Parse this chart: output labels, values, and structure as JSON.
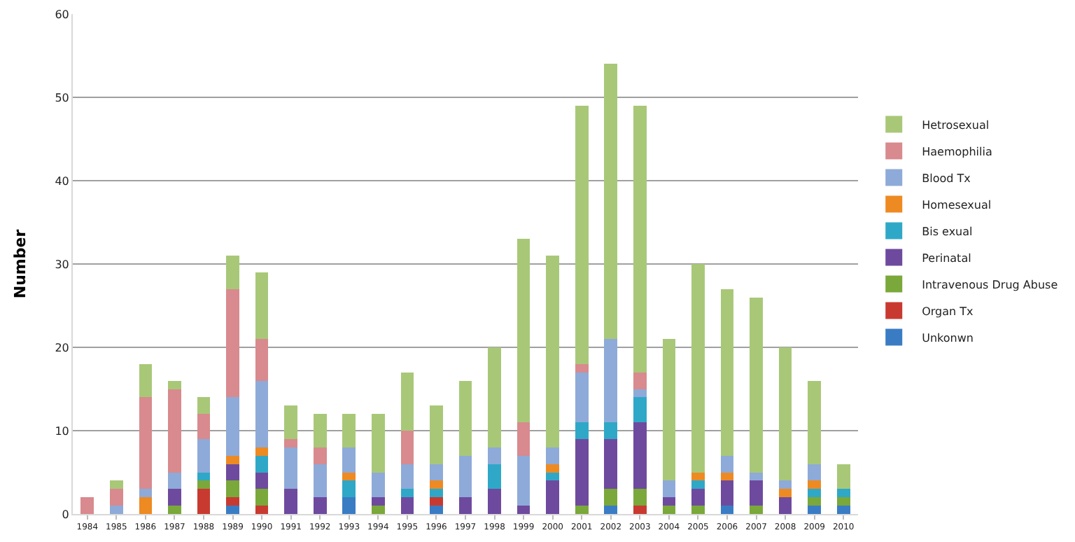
{
  "chart_data": {
    "type": "bar",
    "stacked": true,
    "ylabel": "Number",
    "categories": [
      "1984",
      "1985",
      "1986",
      "1987",
      "1988",
      "1989",
      "1990",
      "1991",
      "1992",
      "1993",
      "1994",
      "1995",
      "1996",
      "1997",
      "1998",
      "1999",
      "2000",
      "2001",
      "2002",
      "2003",
      "2004",
      "2005",
      "2006",
      "2007",
      "2008",
      "2009",
      "2010"
    ],
    "series": [
      {
        "name": "Unkonwn",
        "color": "#3a7cc4",
        "values": [
          0,
          0,
          0,
          0,
          0,
          1,
          0,
          0,
          0,
          2,
          0,
          0,
          1,
          0,
          0,
          0,
          0,
          0,
          1,
          0,
          0,
          0,
          1,
          0,
          0,
          1,
          1
        ]
      },
      {
        "name": "Organ Tx",
        "color": "#c83a30",
        "values": [
          0,
          0,
          0,
          0,
          3,
          1,
          1,
          0,
          0,
          0,
          0,
          0,
          1,
          0,
          0,
          0,
          0,
          0,
          0,
          1,
          0,
          0,
          0,
          0,
          0,
          0,
          0
        ]
      },
      {
        "name": "Intravenous Drug Abuse",
        "color": "#7aa83a",
        "values": [
          0,
          0,
          0,
          1,
          1,
          2,
          2,
          0,
          0,
          0,
          1,
          0,
          0,
          0,
          0,
          0,
          0,
          1,
          2,
          2,
          1,
          1,
          0,
          1,
          0,
          1,
          1
        ]
      },
      {
        "name": "Perinatal",
        "color": "#6e4a9e",
        "values": [
          0,
          0,
          0,
          2,
          0,
          2,
          2,
          3,
          2,
          0,
          1,
          2,
          0,
          2,
          3,
          1,
          4,
          8,
          6,
          8,
          1,
          2,
          3,
          3,
          2,
          0,
          0
        ]
      },
      {
        "name": "Bis exual",
        "color": "#2fa8c8",
        "values": [
          0,
          0,
          0,
          0,
          1,
          0,
          2,
          0,
          0,
          2,
          0,
          1,
          1,
          0,
          3,
          0,
          1,
          2,
          2,
          3,
          0,
          1,
          0,
          0,
          0,
          1,
          1
        ]
      },
      {
        "name": "Homesexual",
        "color": "#ee8a22",
        "values": [
          0,
          0,
          2,
          0,
          0,
          1,
          1,
          0,
          0,
          1,
          0,
          0,
          1,
          0,
          0,
          0,
          1,
          0,
          0,
          0,
          0,
          1,
          1,
          0,
          1,
          1,
          0
        ]
      },
      {
        "name": "Blood Tx",
        "color": "#8eaad8",
        "values": [
          0,
          1,
          1,
          2,
          4,
          7,
          8,
          5,
          4,
          3,
          3,
          3,
          2,
          5,
          2,
          6,
          2,
          6,
          10,
          1,
          2,
          0,
          2,
          1,
          1,
          2,
          0
        ]
      },
      {
        "name": "Haemophilia",
        "color": "#d88a8e",
        "values": [
          2,
          2,
          11,
          10,
          3,
          13,
          5,
          1,
          2,
          0,
          0,
          4,
          0,
          0,
          0,
          4,
          0,
          1,
          0,
          2,
          0,
          0,
          0,
          0,
          0,
          0,
          0
        ]
      },
      {
        "name": "Hetrosexual",
        "color": "#a8c878",
        "values": [
          0,
          1,
          4,
          1,
          2,
          4,
          8,
          4,
          4,
          4,
          7,
          7,
          7,
          9,
          12,
          22,
          23,
          31,
          33,
          32,
          17,
          25,
          20,
          21,
          16,
          10,
          3
        ]
      }
    ],
    "ylim": [
      0,
      60
    ],
    "yticks": [
      0,
      10,
      20,
      30,
      40,
      50,
      60
    ],
    "grid": "y",
    "legend": "right"
  }
}
